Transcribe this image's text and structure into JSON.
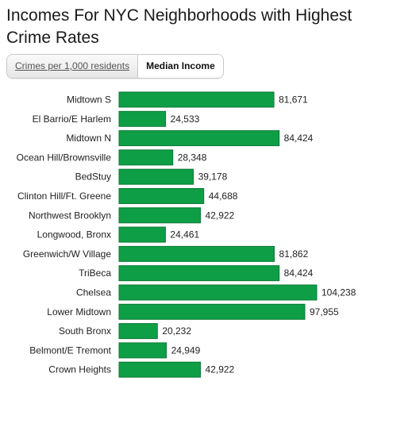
{
  "title": "Incomes For NYC Neighborhoods with Highest Crime Rates",
  "tabs": [
    {
      "label": "Crimes per 1,000 residents",
      "active": false
    },
    {
      "label": "Median Income",
      "active": true
    }
  ],
  "colors": {
    "bar": "#0e9e46",
    "bar_stroke": "#0a7a35"
  },
  "chart_data": {
    "type": "bar",
    "orientation": "horizontal",
    "title": "Incomes For NYC Neighborhoods with Highest Crime Rates",
    "xlabel": "",
    "ylabel": "",
    "xlim": [
      0,
      104238
    ],
    "grid": false,
    "categories": [
      "Midtown S",
      "El Barrio/E Harlem",
      "Midtown N",
      "Ocean Hill/Brownsville",
      "BedStuy",
      "Clinton Hill/Ft. Greene",
      "Northwest Brooklyn",
      "Longwood, Bronx",
      "Greenwich/W Village",
      "TriBeca",
      "Chelsea",
      "Lower Midtown",
      "South Bronx",
      "Belmont/E Tremont",
      "Crown Heights"
    ],
    "values": [
      81671,
      24533,
      84424,
      28348,
      39178,
      44688,
      42922,
      24461,
      81862,
      84424,
      104238,
      97955,
      20232,
      24949,
      42922
    ],
    "value_labels": [
      "81,671",
      "24,533",
      "84,424",
      "28,348",
      "39,178",
      "44,688",
      "42,922",
      "24,461",
      "81,862",
      "84,424",
      "104,238",
      "97,955",
      "20,232",
      "24,949",
      "42,922"
    ]
  }
}
